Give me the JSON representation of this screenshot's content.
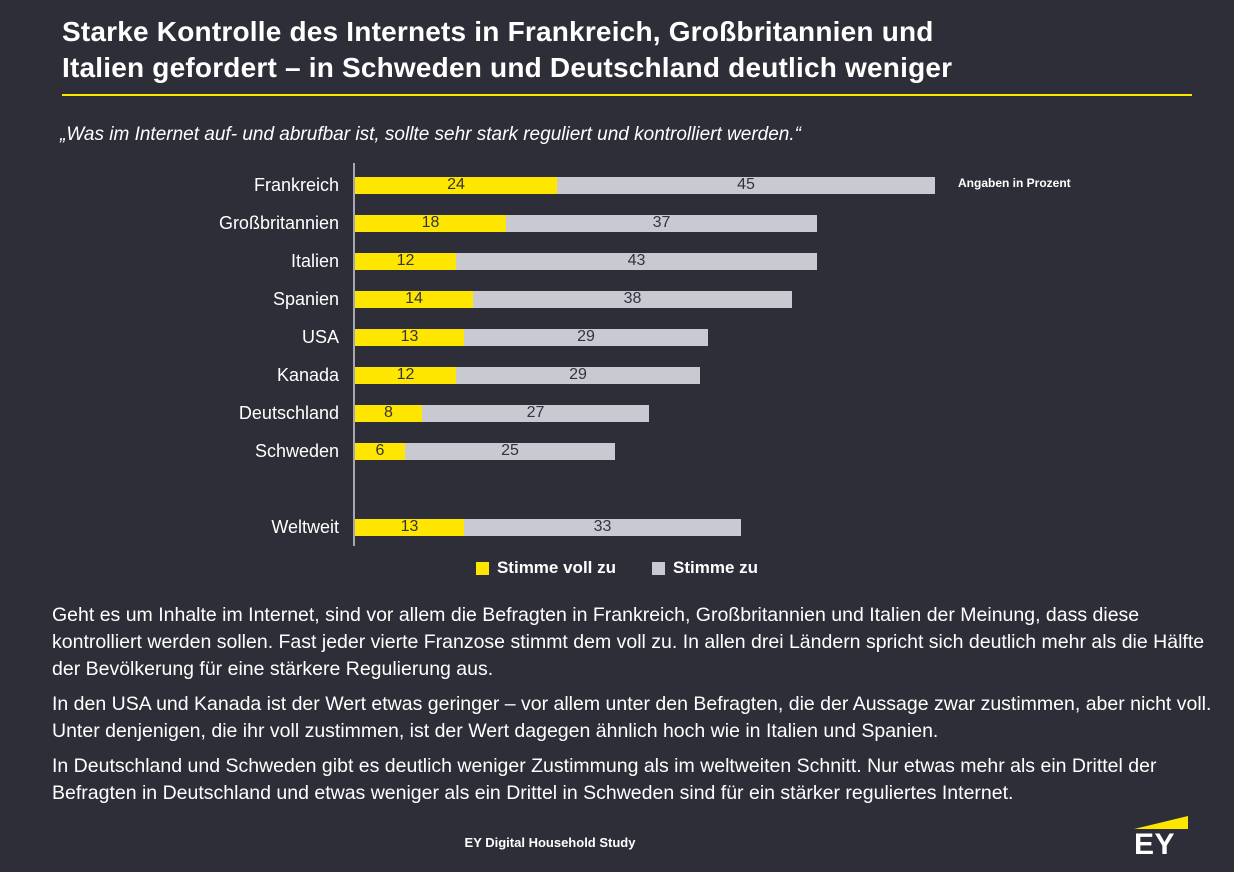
{
  "page": {
    "title_line1": "Starke Kontrolle des Internets in Frankreich, Großbritannien und",
    "title_line2": "Italien gefordert – in Schweden und Deutschland deutlich weniger",
    "subtitle": "„Was im Internet auf- und abrufbar ist, sollte sehr stark reguliert und kontrolliert werden.“"
  },
  "chart_data": {
    "type": "bar",
    "orientation": "horizontal",
    "stacked": true,
    "note": "Angaben in Prozent",
    "unit": "percent",
    "categories": [
      "Frankreich",
      "Großbritannien",
      "Italien",
      "Spanien",
      "USA",
      "Kanada",
      "Deutschland",
      "Schweden",
      "Weltweit"
    ],
    "series": [
      {
        "name": "Stimme voll zu",
        "color": "#ffe600",
        "values": [
          24,
          18,
          12,
          14,
          13,
          12,
          8,
          6,
          13
        ]
      },
      {
        "name": "Stimme zu",
        "color": "#c9c9d2",
        "values": [
          45,
          37,
          43,
          38,
          29,
          29,
          27,
          25,
          33
        ]
      }
    ],
    "totals": [
      69,
      55,
      55,
      52,
      42,
      41,
      35,
      31,
      46
    ],
    "xlim": [
      0,
      69
    ],
    "legend_position": "bottom"
  },
  "paragraphs": [
    "Geht es um Inhalte im Internet, sind vor allem die Befragten in Frankreich, Großbritannien und Italien der Meinung, dass diese kontrolliert werden sollen. Fast jeder vierte Franzose stimmt dem voll zu. In allen drei Ländern spricht sich deutlich mehr als die Hälfte der Bevölkerung für eine stärkere Regulierung aus.",
    "In den USA und Kanada ist der Wert etwas geringer – vor allem unter den Befragten, die der Aussage zwar zustimmen, aber nicht voll. Unter denjenigen, die ihr voll zustimmen, ist der Wert dagegen ähnlich hoch wie in Italien und Spanien.",
    "In Deutschland und Schweden gibt es deutlich weniger Zustimmung als im weltweiten Schnitt. Nur etwas mehr als ein Drittel der Befragten in Deutschland und etwas weniger als ein Drittel in Schweden sind für ein stärker reguliertes Internet."
  ],
  "footer": {
    "study_label": "EY Digital Household Study",
    "logo_text": "EY"
  },
  "colors": {
    "background": "#2e2e38",
    "accent_yellow": "#ffe600",
    "bar_gray": "#c9c9d2",
    "text": "#ffffff",
    "bar_value_text": "#33333d"
  }
}
